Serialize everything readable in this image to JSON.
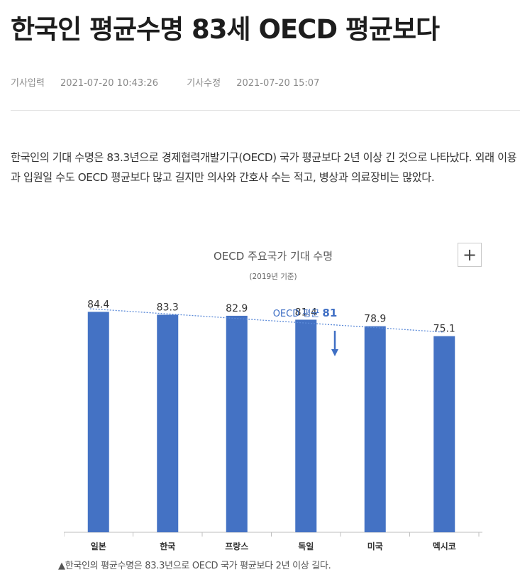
{
  "article": {
    "headline": "한국인 평균수명 83세 OECD 평균보다",
    "meta": {
      "input_label": "기사입력",
      "input_time": "2021-07-20 10:43:26",
      "edit_label": "기사수정",
      "edit_time": "2021-07-20 15:07"
    },
    "body": "한국인의 기대 수명은 83.3년으로 경제협력개발기구(OECD) 국가 평균보다 2년 이상 긴 것으로 나타났다. 외래 이용과 입원일 수도 OECD 평균보다 많고 길지만 의사와 간호사 수는 적고, 병상과 의료장비는 많았다.",
    "caption": "▲한국인의 평균수명은 83.3년으로 OECD 국가 평균보다 2년 이상 길다.",
    "zoom_symbol": "+"
  },
  "chart_data": {
    "type": "bar",
    "title": "OECD 주요국가 기대 수명",
    "subtitle": "(2019년 기준)",
    "categories": [
      "일본",
      "한국",
      "프랑스",
      "독일",
      "미국",
      "멕시코"
    ],
    "values": [
      84.4,
      83.3,
      82.9,
      81.4,
      78.9,
      75.1
    ],
    "value_labels": [
      "84.4",
      "83.3",
      "82.9",
      "81.4",
      "78.9",
      "75.1"
    ],
    "ylim": [
      0,
      100
    ],
    "grid": false,
    "trendline": true,
    "annotation": {
      "prefix": "OECD 평균 ",
      "value": "81",
      "arrow_at": "독일-미국"
    },
    "colors": {
      "bar": "#4472c4",
      "trend": "#5b8ad8",
      "annotation": "#3f6fc4",
      "label": "#333333",
      "axis": "#bfbfbf"
    }
  }
}
